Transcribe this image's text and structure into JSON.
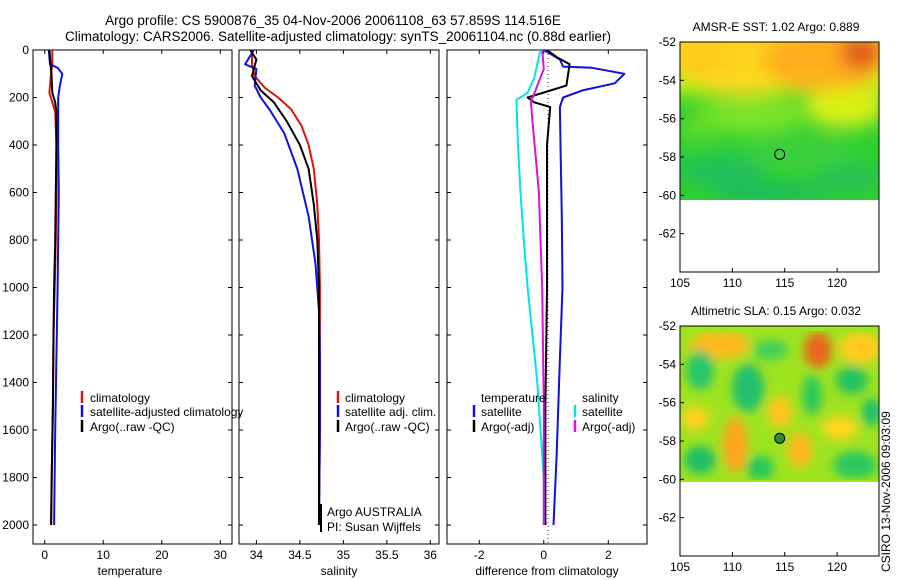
{
  "title": {
    "line1": "Argo profile: CS 5900876_35 04-Nov-2006 20061108_63 57.859S 114.516E",
    "line2": "Climatology: CARS2006. Satellite-adjusted climatology: synTS_20061104.nc (0.88d earlier)"
  },
  "footer": {
    "credit": "CSIRO 13-Nov-2006 09:03:09"
  },
  "chart_data": [
    {
      "type": "line",
      "id": "temperature",
      "xlabel": "temperature",
      "ylabel": "",
      "xlim": [
        -2,
        32
      ],
      "ylim": [
        2080,
        0
      ],
      "xticks": [
        0,
        10,
        20,
        30
      ],
      "yticks": [
        0,
        200,
        400,
        600,
        800,
        1000,
        1200,
        1400,
        1600,
        1800,
        2000
      ],
      "legend": [
        "climatology",
        "satellite-adjusted climatology",
        "Argo(..raw -QC)"
      ],
      "legend_position": "lower-right",
      "series": [
        {
          "name": "climatology",
          "color": "#dd1111",
          "x": [
            1.3,
            1.3,
            1.0,
            0.9,
            0.8,
            1.3,
            1.8,
            2.0,
            2.0,
            1.9,
            1.7,
            1.5,
            1.4,
            1.2,
            1.1
          ],
          "y": [
            0,
            60,
            120,
            150,
            180,
            220,
            260,
            400,
            600,
            800,
            1000,
            1200,
            1500,
            1800,
            2000
          ]
        },
        {
          "name": "satellite-adjusted climatology",
          "color": "#1111dd",
          "x": [
            0.7,
            0.9,
            2.2,
            3.0,
            2.6,
            2.3,
            2.3,
            2.3,
            2.4,
            2.3,
            2.2,
            2.0,
            1.8,
            1.6
          ],
          "y": [
            0,
            60,
            75,
            100,
            150,
            200,
            250,
            400,
            600,
            800,
            1000,
            1300,
            1600,
            2000
          ]
        },
        {
          "name": "Argo(..raw -QC)",
          "color": "#000000",
          "x": [
            0.8,
            1.0,
            1.2,
            1.3,
            1.8,
            2.0,
            2.0,
            1.9,
            1.8,
            1.6,
            1.5,
            1.4,
            1.2,
            1.1
          ],
          "y": [
            0,
            60,
            120,
            180,
            220,
            260,
            400,
            600,
            800,
            1000,
            1200,
            1500,
            1800,
            2000
          ]
        }
      ]
    },
    {
      "type": "line",
      "id": "salinity",
      "xlabel": "salinity",
      "ylabel": "",
      "xlim": [
        33.8,
        36.1
      ],
      "ylim": [
        2080,
        0
      ],
      "xticks": [
        34,
        34.5,
        35,
        35.5,
        36
      ],
      "legend": [
        "climatology",
        "satellite adj. clim.",
        "Argo(..raw -QC)"
      ],
      "legend_position": "lower-right",
      "annotations": [
        "Argo AUSTRALIA",
        "PI: Susan Wijffels"
      ],
      "series": [
        {
          "name": "climatology",
          "color": "#dd1111",
          "x": [
            33.95,
            33.95,
            33.98,
            34.1,
            34.25,
            34.4,
            34.52,
            34.6,
            34.66,
            34.7,
            34.72,
            34.73,
            34.73,
            34.73,
            34.72
          ],
          "y": [
            0,
            60,
            110,
            160,
            200,
            250,
            320,
            400,
            500,
            650,
            800,
            1000,
            1300,
            1600,
            2000
          ]
        },
        {
          "name": "satellite adj. clim.",
          "color": "#1111dd",
          "x": [
            33.97,
            33.87,
            34.0,
            33.98,
            34.05,
            34.15,
            34.32,
            34.47,
            34.6,
            34.68,
            34.72,
            34.73,
            34.73,
            34.72
          ],
          "y": [
            0,
            60,
            80,
            150,
            200,
            250,
            350,
            500,
            700,
            900,
            1100,
            1300,
            1600,
            2000
          ]
        },
        {
          "name": "Argo(..raw -QC)",
          "color": "#000000",
          "x": [
            33.93,
            34.0,
            33.95,
            34.05,
            34.2,
            34.35,
            34.5,
            34.6,
            34.66,
            34.7,
            34.72,
            34.72,
            34.72,
            34.72
          ],
          "y": [
            0,
            40,
            110,
            170,
            220,
            300,
            400,
            500,
            650,
            800,
            1000,
            1300,
            1600,
            2000
          ]
        }
      ]
    },
    {
      "type": "line",
      "id": "difference",
      "xlabel": "difference from climatology",
      "ylabel": "",
      "xlim": [
        -3,
        3.2
      ],
      "ylim": [
        2080,
        0
      ],
      "xticks": [
        -2,
        0,
        2
      ],
      "legend_groups": [
        {
          "title": "temperature",
          "entries": [
            "satellite",
            "Argo(-adj)"
          ]
        },
        {
          "title": "salinity",
          "entries": [
            "satellite",
            "Argo(-adj)"
          ]
        }
      ],
      "legend_position": "lower-center",
      "series": [
        {
          "name": "temperature satellite",
          "color": "#1111dd",
          "x": [
            0.0,
            0.5,
            0.6,
            1.5,
            2.5,
            2.2,
            1.2,
            0.6,
            0.5,
            0.52,
            0.56,
            0.58,
            0.5,
            0.4,
            0.3
          ],
          "y": [
            0,
            40,
            70,
            75,
            100,
            140,
            170,
            200,
            240,
            400,
            700,
            1000,
            1300,
            1700,
            2000
          ]
        },
        {
          "name": "temperature Argo(-adj)",
          "color": "#000000",
          "x": [
            0.1,
            0.4,
            0.8,
            0.7,
            -0.5,
            -0.3,
            0.2,
            0.1,
            0.1,
            0.1,
            0.05,
            0.05
          ],
          "y": [
            0,
            30,
            60,
            150,
            200,
            220,
            240,
            400,
            700,
            1000,
            1500,
            2000
          ]
        },
        {
          "name": "salinity satellite",
          "color": "#00e5e5",
          "x": [
            -0.1,
            -0.2,
            -0.3,
            -0.5,
            -0.85,
            -0.8,
            -0.72,
            -0.62,
            -0.5,
            -0.35,
            -0.2,
            -0.1,
            0.0,
            0.0
          ],
          "y": [
            0,
            60,
            120,
            180,
            210,
            400,
            600,
            800,
            1000,
            1200,
            1400,
            1600,
            1800,
            2000
          ]
        },
        {
          "name": "salinity Argo(-adj)",
          "color": "#dd11dd",
          "x": [
            -0.05,
            0.0,
            -0.2,
            -0.4,
            -0.35,
            -0.25,
            -0.15,
            -0.1,
            -0.05,
            0.0,
            0.0
          ],
          "y": [
            0,
            80,
            150,
            220,
            300,
            450,
            600,
            800,
            1000,
            1500,
            2000
          ]
        }
      ]
    },
    {
      "type": "heatmap",
      "id": "sst-map",
      "title": "AMSR-E SST: 1.02 Argo: 0.889",
      "xlim": [
        105,
        124
      ],
      "ylim": [
        -64,
        -52
      ],
      "xticks": [
        105,
        110,
        115,
        120
      ],
      "yticks": [
        -52,
        -54,
        -56,
        -58,
        -60,
        -62
      ],
      "data_lat_min": -60,
      "marker": {
        "lon": 114.516,
        "lat": -57.859,
        "style": "open-circle"
      }
    },
    {
      "type": "heatmap",
      "id": "sla-map",
      "title": "Altimetric SLA: 0.15 Argo: 0.032",
      "xlim": [
        105,
        124
      ],
      "ylim": [
        -64,
        -52
      ],
      "xticks": [
        105,
        110,
        115,
        120
      ],
      "yticks": [
        -52,
        -54,
        -56,
        -58,
        -60,
        -62
      ],
      "data_lat_min": -60,
      "marker": {
        "lon": 114.516,
        "lat": -57.859,
        "style": "filled-green-circle"
      }
    }
  ]
}
